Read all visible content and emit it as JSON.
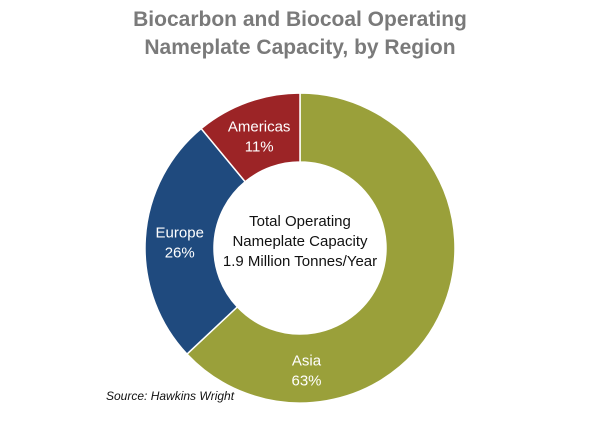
{
  "chart_data": {
    "type": "pie",
    "title": [
      "Biocarbon and Biocoal Operating",
      "Nameplate Capacity, by Region"
    ],
    "donut": true,
    "center_text": [
      "Total Operating",
      "Nameplate Capacity",
      "1.9 Million Tonnes/Year"
    ],
    "slices": [
      {
        "label": "Asia",
        "value": 63,
        "value_label": "63%",
        "color": "#9aa03a"
      },
      {
        "label": "Europe",
        "value": 26,
        "value_label": "26%",
        "color": "#1f4a7e"
      },
      {
        "label": "Americas",
        "value": 11,
        "value_label": "11%",
        "color": "#9c2426"
      }
    ],
    "source": "Source: Hawkins Wright"
  }
}
